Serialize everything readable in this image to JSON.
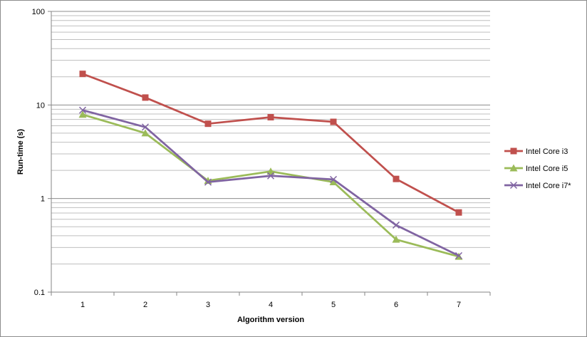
{
  "chart_data": {
    "type": "line",
    "title": "",
    "xlabel": "Algorithm version",
    "ylabel": "Run-time (s)",
    "yscale": "log",
    "ylim": [
      0.1,
      100
    ],
    "yticks": [
      "0.1",
      "1",
      "10",
      "100"
    ],
    "categories": [
      "1",
      "2",
      "3",
      "4",
      "5",
      "6",
      "7"
    ],
    "grid": true,
    "legend_position": "right",
    "series": [
      {
        "name": "Intel Core i3",
        "color": "#c0504d",
        "marker": "square",
        "values": [
          21.5,
          12.0,
          6.3,
          7.4,
          6.6,
          1.62,
          0.71
        ]
      },
      {
        "name": "Intel Core i5",
        "color": "#9bbb59",
        "marker": "triangle",
        "values": [
          7.9,
          5.0,
          1.55,
          1.95,
          1.5,
          0.365,
          0.24
        ]
      },
      {
        "name": "Intel Core i7*",
        "color": "#8064a2",
        "marker": "x",
        "values": [
          8.8,
          5.8,
          1.5,
          1.75,
          1.6,
          0.52,
          0.245
        ]
      }
    ]
  }
}
